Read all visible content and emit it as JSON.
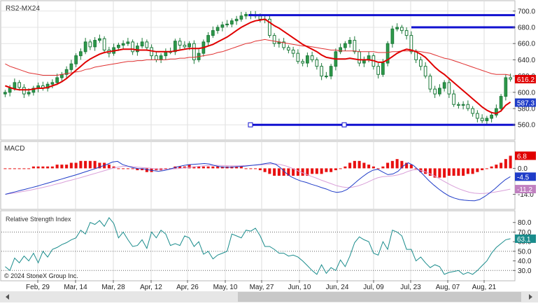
{
  "chart_data": [
    {
      "type": "candlestick",
      "title": "RS2-MX24",
      "ylim": [
        549,
        705
      ],
      "y_ticks": [
        560,
        580,
        600,
        620,
        640,
        660,
        680,
        700
      ],
      "x_ticks": [
        "Feb, 29",
        "Mar, 14",
        "Mar, 28",
        "Apr, 12",
        "Apr, 26",
        "May, 10",
        "May, 27",
        "Jun, 10",
        "Jun, 24",
        "Jul, 09",
        "Jul, 23",
        "Aug, 07",
        "Aug, 21"
      ],
      "horizontal_lines": [
        695,
        680,
        560
      ],
      "price_labels": [
        {
          "text": "616.2",
          "value": 616.2,
          "color": "#e00000"
        },
        {
          "text": "587.3",
          "value": 587.3,
          "color": "#1f3cc8"
        }
      ],
      "closes": [
        600,
        605,
        612,
        606,
        598,
        600,
        605,
        608,
        605,
        610,
        612,
        618,
        622,
        628,
        635,
        645,
        650,
        662,
        656,
        664,
        666,
        652,
        648,
        655,
        658,
        660,
        662,
        650,
        657,
        662,
        655,
        645,
        640,
        645,
        650,
        650,
        663,
        658,
        656,
        660,
        640,
        648,
        662,
        670,
        676,
        680,
        683,
        684,
        688,
        690,
        694,
        696,
        695,
        694,
        690,
        690,
        670,
        660,
        662,
        655,
        652,
        648,
        638,
        636,
        645,
        640,
        632,
        620,
        620,
        632,
        650,
        655,
        660,
        664,
        650,
        636,
        640,
        645,
        632,
        622,
        636,
        660,
        678,
        680,
        676,
        670,
        650,
        640,
        632,
        620,
        604,
        598,
        605,
        612,
        598,
        585,
        584,
        585,
        580,
        574,
        568,
        565,
        568,
        572,
        580,
        595,
        618,
        616.2
      ],
      "ma_fast": "608,606,604,603,603,603,604,605,605,606,608,610,613,617,622,627,632,637,641,644,647,649,650,651,652,653,653,653,652,652,652,651,650,650,650,650,651,652,653,654,654,654,655,657,659,662,665,668,672,676,680,683,686,688,689,690,686,682,679,675,671,667,663,659,656,653,650,646,643,642,641,641,641,642,641,640,640,640,639,637,637,640,644,648,651,653,652,650,647,643,637,631,626,622,617,612,607,602,597,592,587,582,578,575,574,577,584,588",
      "ma_slow": "635,632,630,628,626,624,623,622,621,621,621,621,622,623,624,625,626,628,629,631,632,633,634,635,636,637,638,638,639,639,640,640,640,640,640,641,641,642,642,643,643,644,645,646,647,649,650,652,654,656,658,660,661,663,664,665,664,663,662,661,660,659,658,657,657,656,655,654,653,652,652,651,651,651,651,650,650,650,650,649,649,649,650,650,651,651,651,651,650,649,648,646,644,642,641,639,637,635,633,631,629,627,625,623,622,622,622,621"
    },
    {
      "type": "bar+line",
      "title": "MACD",
      "ylim": [
        -21,
        13
      ],
      "y_ticks": [
        0.0,
        -14.0
      ],
      "value_labels": [
        {
          "text": "6.8",
          "value": 6.8,
          "color": "#e00000"
        },
        {
          "text": "-4.5",
          "value": -4.5,
          "color": "#1f3cc8"
        },
        {
          "text": "-11.2",
          "value": -11.2,
          "color": "#c080c0"
        }
      ],
      "histogram": [
        0,
        0,
        0,
        0,
        0,
        0,
        1,
        1,
        1,
        1,
        1,
        2,
        2,
        2,
        3,
        3,
        4,
        4,
        4,
        4,
        3,
        3,
        2,
        1,
        0,
        0,
        0,
        0,
        -1,
        -1,
        -2,
        -2,
        -1,
        -1,
        0,
        0,
        1,
        1,
        1,
        2,
        1,
        1,
        1,
        1,
        1,
        1,
        1,
        1,
        1,
        1,
        1,
        0,
        0,
        0,
        -1,
        -2,
        -3,
        -4,
        -4,
        -4,
        -4,
        -4,
        -4,
        -4,
        -4,
        -3,
        -3,
        -3,
        -2,
        -2,
        -1,
        0,
        1,
        3,
        4,
        4,
        3,
        2,
        1,
        0,
        1,
        3,
        4,
        5,
        4,
        3,
        2,
        0,
        -2,
        -3,
        -4,
        -5,
        -5,
        -5,
        -4,
        -4,
        -4,
        -4,
        -3,
        -3,
        -2,
        -1,
        0,
        1,
        2,
        3,
        5,
        6.8
      ],
      "macd_line": "-14.0,-13.3,-12.6,-11.9,-11.2,-10.5,-9.8,-9.0,-8.2,-7.4,-6.6,-5.8,-5.0,-4.2,-3.4,-2.5,-1.6,-0.7,0.2,1.2,2.2,3.4,3.8,2.0,1.2,0.4,-0.1,-0.2,-0.8,-1.2,-1.6,-1.2,-0.6,0.2,1.0,1.6,2.0,2.2,2.4,2.6,2.3,1.5,0.9,0.7,0.6,0.8,1.0,1.2,1.5,1.8,2.1,2.6,3.0,2.2,0.2,-2.5,-4.5,-5.8,-6.9,-7.6,-8.6,-9.4,-10.4,-11.2,-12.4,-13.0,-12.6,-11.4,-9.2,-6.8,-4.6,-2.6,-1.1,-0.5,-2.0,-3.4,-3.0,-1.6,1.2,3.0,1.6,-0.8,-3.6,-6.5,-9.0,-11.2,-13.2,-14.9,-16.0,-16.8,-17.2,-17.4,-17.5,-16.8,-15.2,-13.2,-11.0,-8.5,-6.2,-4.5",
      "signal_line": "-14.0,-13.6,-13.2,-12.7,-12.2,-11.7,-11.1,-10.5,-9.9,-9.2,-8.5,-7.8,-7.0,-6.3,-5.6,-4.8,-4.0,-3.2,-2.4,-1.6,-0.8,0.0,0.6,1.1,1.1,0.9,0.6,0.4,0.2,-0.1,-0.4,-0.5,-0.5,-0.3,-0.1,0.2,0.5,0.8,1.1,1.4,1.6,1.7,1.6,1.5,1.4,1.4,1.4,1.5,1.6,1.7,1.9,2.1,2.3,2.4,2.0,1.3,0.3,-0.9,-2.1,-3.2,-4.3,-5.3,-6.4,-7.4,-8.4,-9.4,-10.0,-10.4,-10.2,-9.6,-8.7,-7.5,-6.2,-5.1,-4.5,-4.3,-4.0,-3.5,-2.7,-1.6,-0.8,-0.8,-1.5,-2.6,-3.9,-5.4,-7.0,-8.5,-9.9,-11.1,-12.1,-12.9,-13.4,-13.6,-13.5,-13.2,-12.8,-12.3,-11.8,-11.2"
    },
    {
      "type": "line",
      "title": "Relative Strength Index",
      "ylim": [
        20,
        90
      ],
      "y_ticks": [
        80.0,
        70.0,
        60.0,
        50.0,
        40.0,
        30.0
      ],
      "dotted_lines": [
        70,
        50,
        30
      ],
      "value_labels": [
        {
          "text": "63.1",
          "value": 63.1,
          "color": "#1a8c8c"
        }
      ],
      "rsi": "34,30,43,38,45,40,48,38,50,44,52,54,57,59,62,64,72,68,80,78,82,76,85,79,64,70,62,55,56,62,53,70,64,72,68,56,58,56,66,64,55,60,47,50,42,46,48,50,68,66,64,72,71,74,66,55,55,52,48,48,45,46,44,40,35,30,26,36,27,33,30,41,34,45,59,65,62,60,48,46,60,52,72,70,66,52,52,40,44,38,33,36,34,26,28,29,30,26,28,26,30,35,40,48,54,58,62,63.1"
    }
  ],
  "footer": {
    "copyright": "© 2024 StoneX Group Inc."
  }
}
